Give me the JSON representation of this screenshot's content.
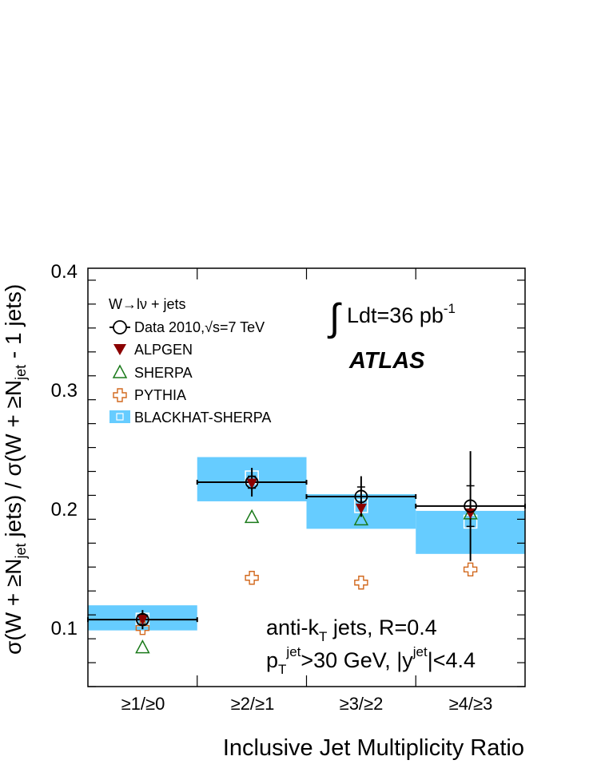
{
  "chart_data": {
    "type": "scatter",
    "title": "",
    "xlabel": "Inclusive Jet Multiplicity Ratio",
    "ylabel_parts": [
      "σ(W + ≥N",
      "jet",
      " jets) / σ(W + ≥N",
      "jet",
      " - 1 jets)"
    ],
    "categories": [
      "≥1/≥0",
      "≥2/≥1",
      "≥3/≥2",
      "≥4/≥3"
    ],
    "ylim": [
      0.05,
      0.4
    ],
    "yticks": [
      "0.1",
      "0.2",
      "0.3",
      "0.4"
    ],
    "series": [
      {
        "name": "Data 2010,√s=7 TeV",
        "marker": "open-circle",
        "color": "#000000",
        "values": [
          0.106,
          0.221,
          0.209,
          0.201
        ],
        "err_stat": [
          0.004,
          0.005,
          0.008,
          0.017
        ],
        "err_total": [
          0.008,
          0.012,
          0.017,
          0.046
        ]
      },
      {
        "name": "ALPGEN",
        "marker": "filled-triangle-down",
        "color": "#8b0000",
        "values": [
          0.106,
          0.22,
          0.199,
          0.195
        ]
      },
      {
        "name": "SHERPA",
        "marker": "open-triangle-up",
        "color": "#1a7a1a",
        "values": [
          0.083,
          0.192,
          0.19,
          0.195
        ]
      },
      {
        "name": "PYTHIA",
        "marker": "open-cross",
        "color": "#d2691e",
        "values": [
          0.099,
          0.141,
          0.137,
          0.148
        ]
      },
      {
        "name": "BLACKHAT-SHERPA",
        "marker": "band",
        "color": "#66ccff",
        "values": [
          0.106,
          0.225,
          0.201,
          0.188
        ],
        "band_low": [
          0.097,
          0.205,
          0.182,
          0.161
        ],
        "band_high": [
          0.118,
          0.242,
          0.211,
          0.197
        ]
      }
    ],
    "legend": {
      "title_parts": [
        "W",
        "→",
        "lν + jets"
      ],
      "location": "top-left"
    },
    "annotations": {
      "lumi_parts": [
        "∫",
        "Ldt=36 pb",
        "-1"
      ],
      "experiment": "ATLAS",
      "jets_parts": [
        "anti-k",
        "T",
        " jets, R=0.4"
      ],
      "cuts_parts": [
        "p",
        "T",
        "jet",
        ">30 GeV, |y",
        "jet",
        "|<4.4"
      ]
    }
  }
}
